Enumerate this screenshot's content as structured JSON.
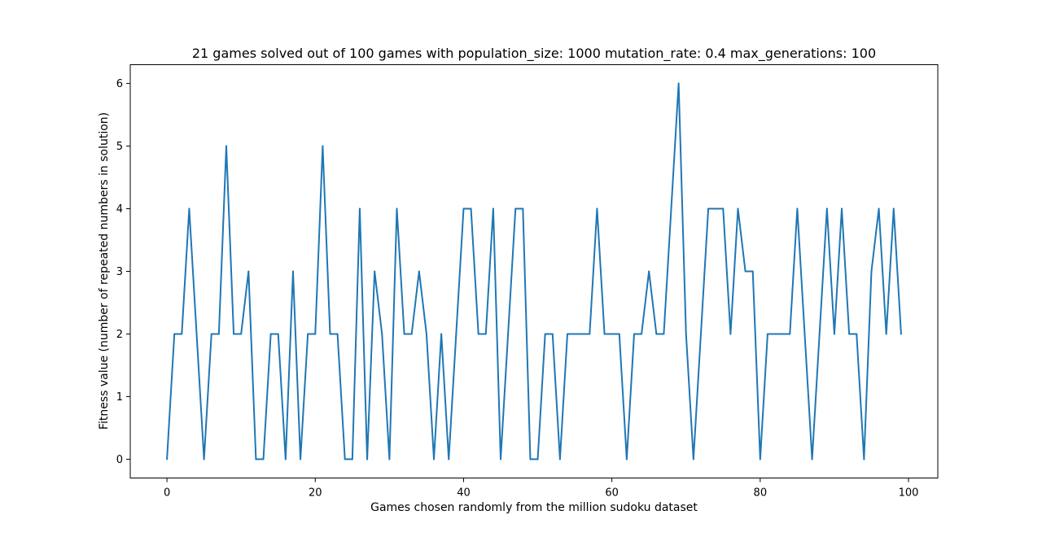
{
  "chart_data": {
    "type": "line",
    "title": "21 games solved out of 100 games with population_size: 1000 mutation_rate: 0.4 max_generations: 100",
    "xlabel": "Games chosen randomly from the million sudoku dataset",
    "ylabel": "Fitness value (number of repeated numbers in solution)",
    "xlim": [
      -4.95,
      103.95
    ],
    "ylim": [
      -0.3,
      6.3
    ],
    "xticks": [
      0,
      20,
      40,
      60,
      80,
      100
    ],
    "yticks": [
      0,
      1,
      2,
      3,
      4,
      5,
      6
    ],
    "grid": false,
    "legend": "none",
    "color": "#1f77b4",
    "x": [
      0,
      1,
      2,
      3,
      4,
      5,
      6,
      7,
      8,
      9,
      10,
      11,
      12,
      13,
      14,
      15,
      16,
      17,
      18,
      19,
      20,
      21,
      22,
      23,
      24,
      25,
      26,
      27,
      28,
      29,
      30,
      31,
      32,
      33,
      34,
      35,
      36,
      37,
      38,
      39,
      40,
      41,
      42,
      43,
      44,
      45,
      46,
      47,
      48,
      49,
      50,
      51,
      52,
      53,
      54,
      55,
      56,
      57,
      58,
      59,
      60,
      61,
      62,
      63,
      64,
      65,
      66,
      67,
      68,
      69,
      70,
      71,
      72,
      73,
      74,
      75,
      76,
      77,
      78,
      79,
      80,
      81,
      82,
      83,
      84,
      85,
      86,
      87,
      88,
      89,
      90,
      91,
      92,
      93,
      94,
      95,
      96,
      97,
      98,
      99
    ],
    "y": [
      0,
      2,
      2,
      4,
      2,
      0,
      2,
      2,
      5,
      2,
      2,
      3,
      0,
      0,
      2,
      2,
      0,
      3,
      0,
      2,
      2,
      5,
      2,
      2,
      0,
      0,
      4,
      0,
      3,
      2,
      0,
      4,
      2,
      2,
      3,
      2,
      0,
      2,
      0,
      2,
      4,
      4,
      2,
      2,
      4,
      0,
      2,
      4,
      4,
      0,
      0,
      2,
      2,
      0,
      2,
      2,
      2,
      2,
      4,
      2,
      2,
      2,
      0,
      2,
      2,
      3,
      2,
      2,
      4,
      6,
      2,
      0,
      2,
      4,
      4,
      4,
      2,
      4,
      3,
      3,
      0,
      2,
      2,
      2,
      2,
      4,
      2,
      0,
      2,
      4,
      2,
      4,
      2,
      2,
      0,
      3,
      4,
      2,
      4,
      2
    ]
  }
}
